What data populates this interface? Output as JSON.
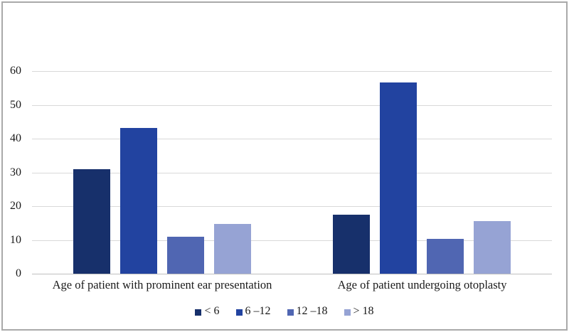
{
  "chart_data": {
    "type": "bar",
    "title": "",
    "categories": [
      "Age of patient with prominent ear presentation",
      "Age of patient undergoing otoplasty"
    ],
    "series": [
      {
        "name": "< 6",
        "color": "#17306b",
        "values": [
          31.0,
          17.5
        ]
      },
      {
        "name": "6 –12",
        "color": "#2243a0",
        "values": [
          43.2,
          56.7
        ]
      },
      {
        "name": "12 –18",
        "color": "#5066b2",
        "values": [
          11.0,
          10.3
        ]
      },
      {
        "name": "> 18",
        "color": "#96a3d4",
        "values": [
          14.8,
          15.5
        ]
      }
    ],
    "xlabel": "",
    "ylabel": "",
    "ylim": [
      0,
      60
    ],
    "yticks": [
      0,
      10,
      20,
      30,
      40,
      50,
      60
    ],
    "grid": true,
    "legend_position": "bottom",
    "style": {
      "gridline_color": "#d9d9d9",
      "axis_line_color": "#bfbfbf",
      "figure_border_color": "#a9a9a9",
      "background_color": "#ffffff"
    }
  }
}
